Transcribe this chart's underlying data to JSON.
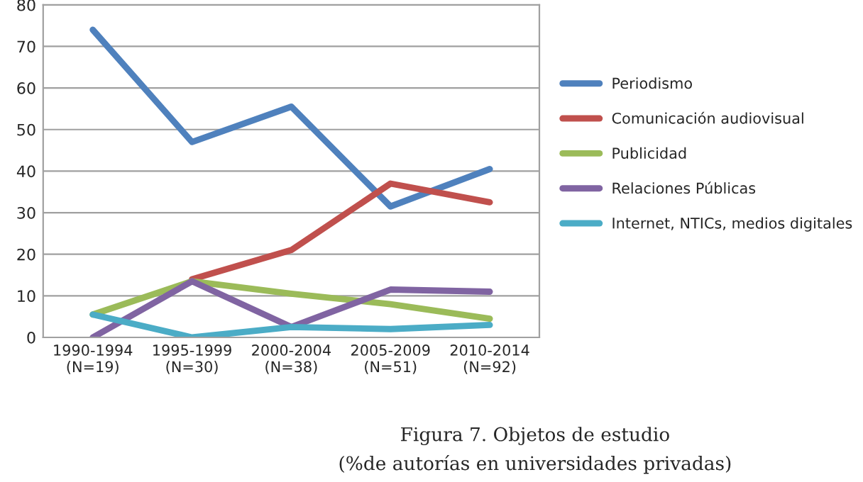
{
  "chart_data": {
    "type": "line",
    "title": "Figura 7. Objetos de estudio",
    "subtitle": "(%de autorías en universidades privadas)",
    "categories": [
      "1990-1994\n(N=19)",
      "1995-1999\n(N=30)",
      "2000-2004\n(N=38)",
      "2005-2009\n(N=51)",
      "2010-2014\n(N=92)"
    ],
    "series": [
      {
        "name": "Periodismo",
        "color": "#4f81bd",
        "values": [
          74,
          47,
          55.5,
          31.5,
          40.5
        ]
      },
      {
        "name": "Comunicación audiovisual",
        "color": "#c0504d",
        "values": [
          null,
          14,
          21,
          37,
          32.5
        ]
      },
      {
        "name": "Publicidad",
        "color": "#9bbb59",
        "values": [
          5.5,
          13.5,
          10.5,
          8,
          4.5
        ]
      },
      {
        "name": "Relaciones Públicas",
        "color": "#8064a2",
        "values": [
          0,
          13.5,
          2.5,
          11.5,
          11
        ]
      },
      {
        "name": "Internet, NTICs, medios digitales",
        "color": "#4bacc6",
        "values": [
          5.5,
          0,
          2.5,
          2,
          3
        ]
      }
    ],
    "ylim": [
      0,
      80
    ],
    "yticks": [
      0,
      10,
      20,
      30,
      40,
      50,
      60,
      70,
      80
    ],
    "grid": "y",
    "legend": "right",
    "marker": "none",
    "line_style": "solid"
  }
}
